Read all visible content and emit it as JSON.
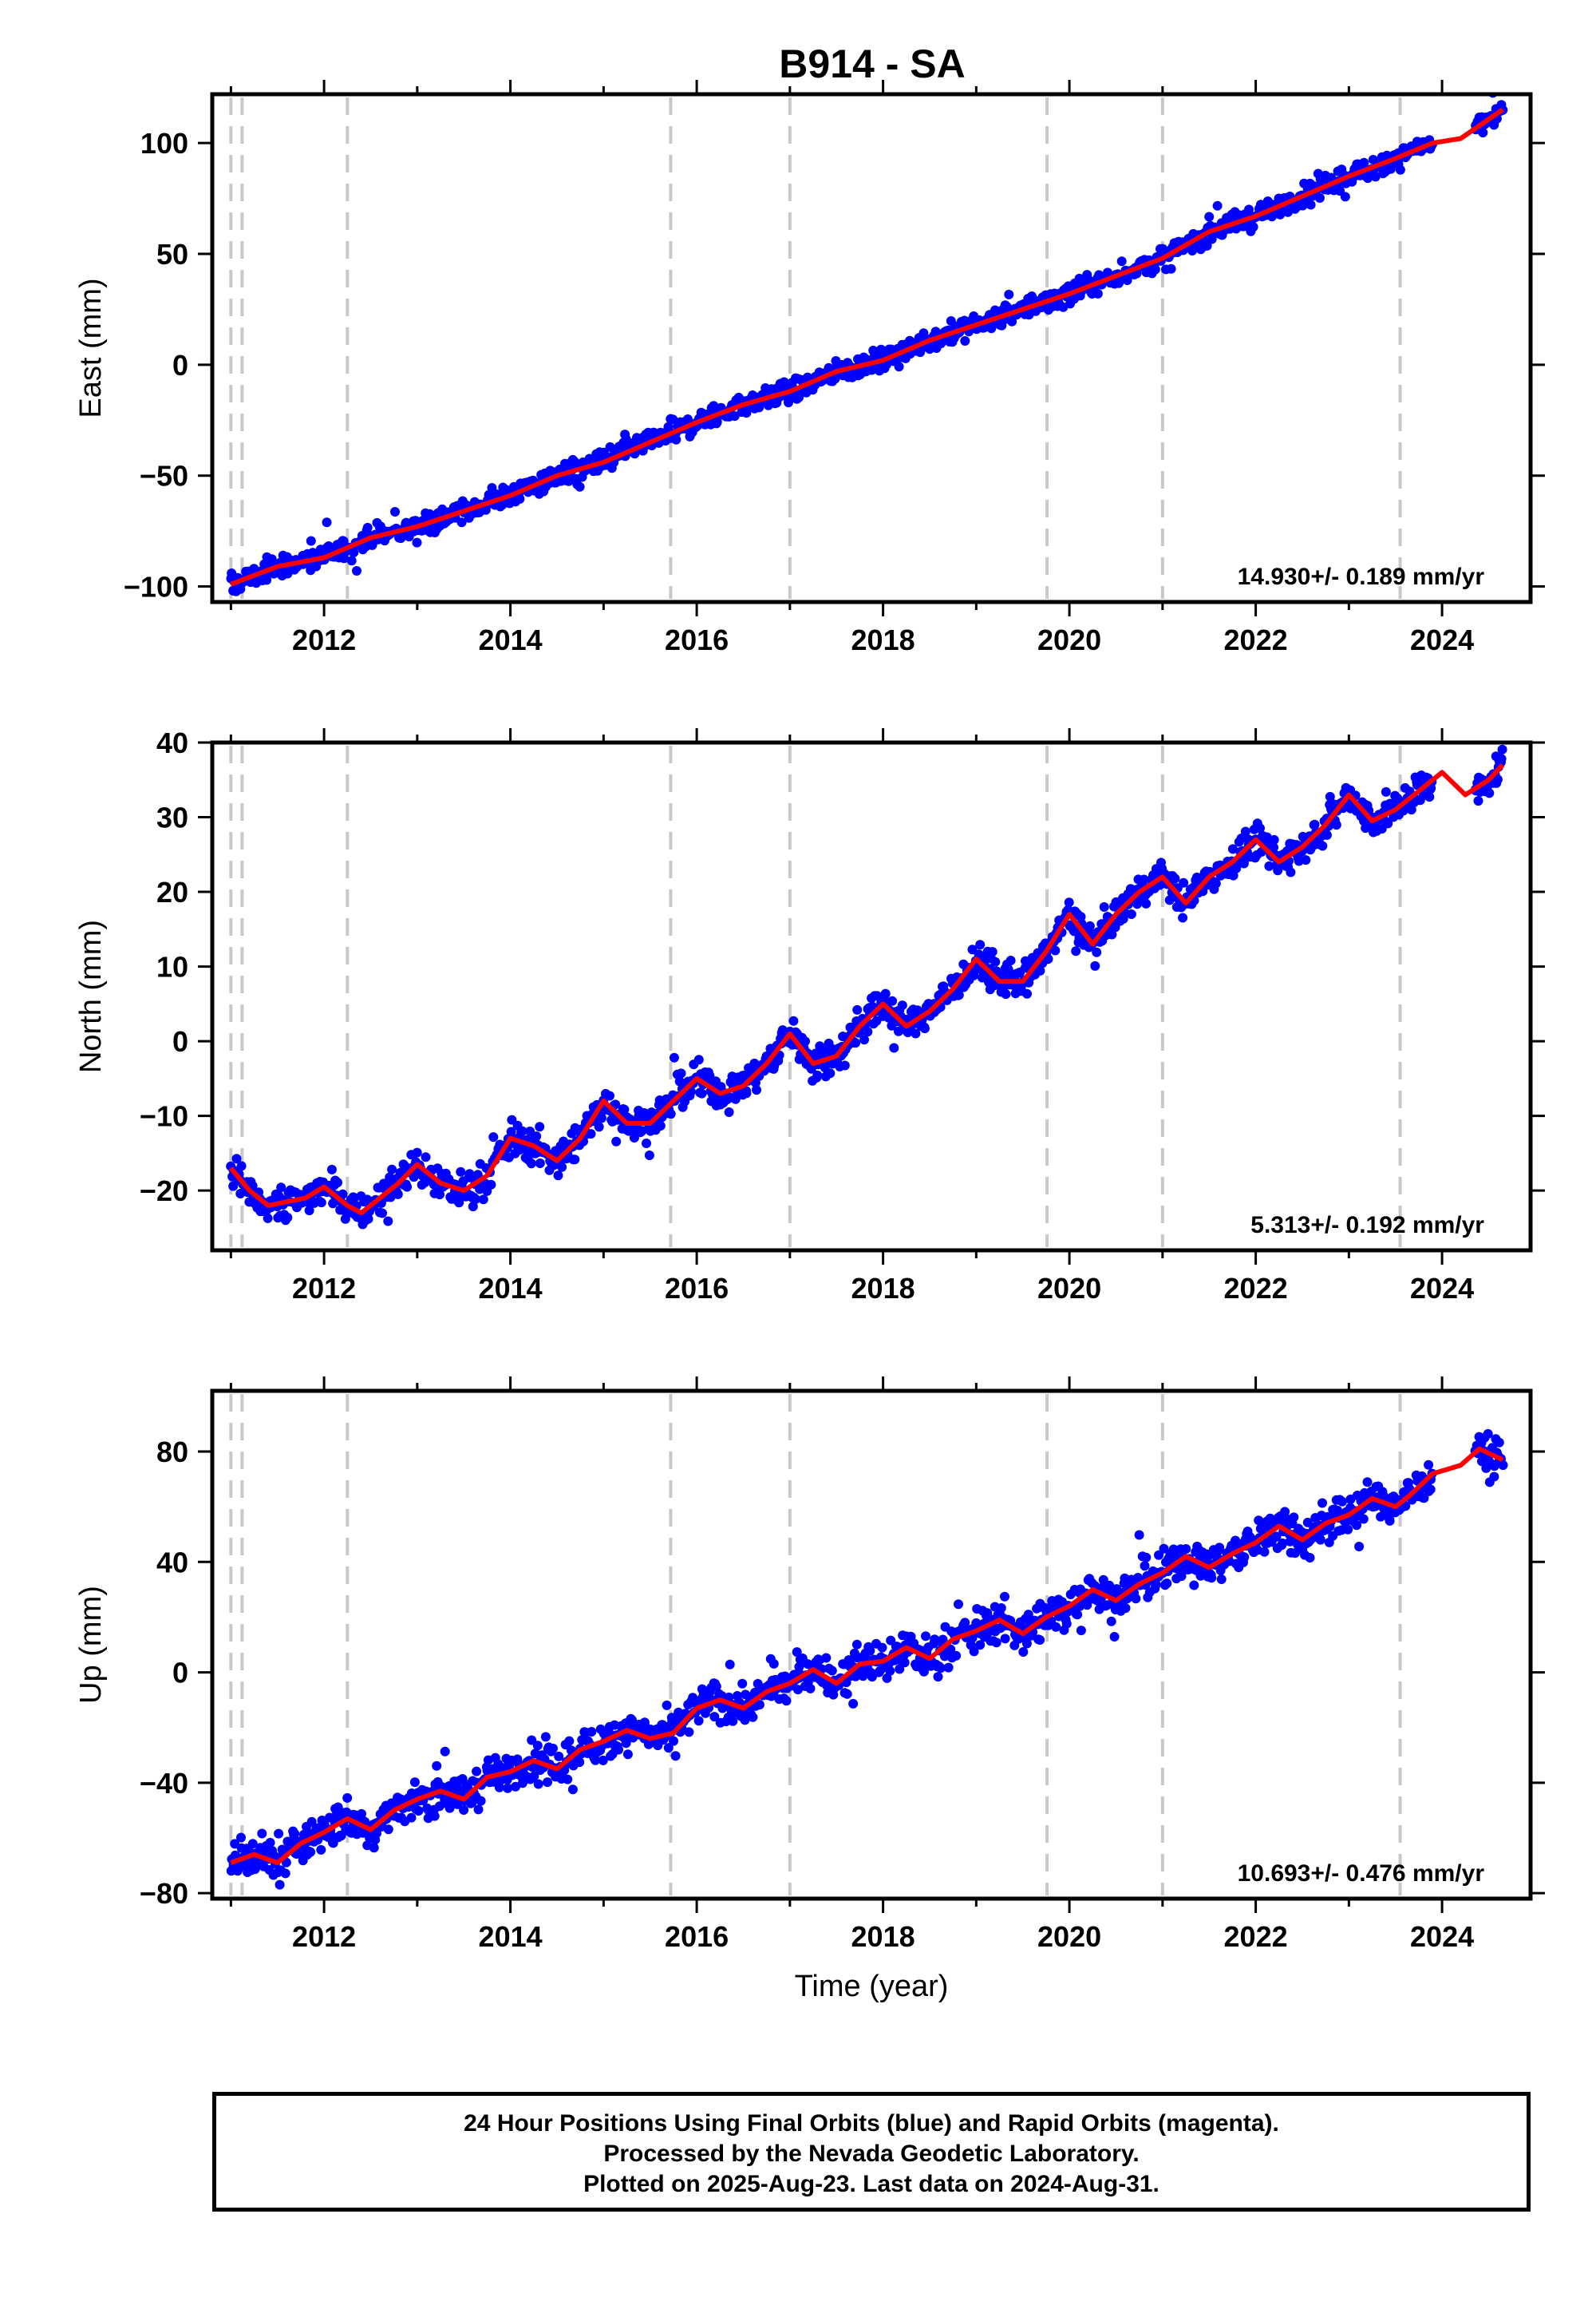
{
  "title": "B914 - SA",
  "footer": {
    "line1": "24 Hour Positions Using Final Orbits (blue) and Rapid Orbits (magenta).",
    "line2": "Processed by the Nevada Geodetic Laboratory.",
    "line3": "Plotted on 2025-Aug-23. Last data on 2024-Aug-31."
  },
  "colors": {
    "data": "#0000ff",
    "model": "#ff0000",
    "steps": "#c8c8c8",
    "axis": "#000000"
  },
  "chart_data": [
    {
      "type": "scatter",
      "component": "east",
      "ylabel": "East (mm)",
      "xlabel": "",
      "xlim": [
        2010.8,
        2024.95
      ],
      "ylim": [
        -107,
        122
      ],
      "xticks": [
        2012,
        2014,
        2016,
        2018,
        2020,
        2022,
        2024
      ],
      "yticks": [
        -100,
        -50,
        0,
        50,
        100
      ],
      "ytick_labels": [
        "−100",
        "−50",
        "0",
        "50",
        "100"
      ],
      "rate_label": "14.930+/- 0.189 mm/yr",
      "steps": [
        2011.0,
        2011.12,
        2012.25,
        2015.72,
        2017.0,
        2019.76,
        2021.0,
        2023.55
      ],
      "model": {
        "x": [
          2011.0,
          2011.5,
          2012.0,
          2012.5,
          2013.0,
          2013.5,
          2014.0,
          2014.5,
          2015.0,
          2015.5,
          2016.0,
          2016.5,
          2017.0,
          2017.5,
          2018.0,
          2018.5,
          2019.0,
          2019.5,
          2020.0,
          2020.5,
          2021.0,
          2021.5,
          2022.0,
          2022.5,
          2023.0,
          2023.5,
          2023.9,
          2024.2,
          2024.65
        ],
        "y": [
          -99,
          -91,
          -87,
          -78,
          -73,
          -66,
          -59,
          -50,
          -44,
          -35,
          -26,
          -18,
          -12,
          -3,
          2,
          11,
          18,
          25,
          32,
          40,
          48,
          60,
          67,
          76,
          85,
          93,
          100,
          102,
          115
        ]
      },
      "scatter": {
        "x_start": 2011.0,
        "x_end": 2024.65,
        "gap": [
          2023.9,
          2024.35
        ],
        "spread": 3.5,
        "count": 1300
      }
    },
    {
      "type": "scatter",
      "component": "north",
      "ylabel": "North (mm)",
      "xlabel": "",
      "xlim": [
        2010.8,
        2024.95
      ],
      "ylim": [
        -28,
        40
      ],
      "xticks": [
        2012,
        2014,
        2016,
        2018,
        2020,
        2022,
        2024
      ],
      "yticks": [
        -20,
        -10,
        0,
        10,
        20,
        30,
        40
      ],
      "ytick_labels": [
        "−20",
        "−10",
        "0",
        "10",
        "20",
        "30",
        "40"
      ],
      "rate_label": "5.313+/- 0.192 mm/yr",
      "steps": [
        2011.0,
        2011.12,
        2012.25,
        2015.72,
        2017.0,
        2019.76,
        2021.0,
        2023.55
      ],
      "model": {
        "x": [
          2011.0,
          2011.2,
          2011.4,
          2011.6,
          2011.8,
          2012.0,
          2012.25,
          2012.4,
          2012.6,
          2012.8,
          2013.0,
          2013.25,
          2013.5,
          2013.75,
          2014.0,
          2014.25,
          2014.5,
          2014.75,
          2015.0,
          2015.25,
          2015.5,
          2015.75,
          2016.0,
          2016.25,
          2016.5,
          2016.75,
          2017.0,
          2017.25,
          2017.5,
          2017.75,
          2018.0,
          2018.25,
          2018.5,
          2018.75,
          2019.0,
          2019.25,
          2019.5,
          2019.75,
          2020.0,
          2020.25,
          2020.5,
          2020.75,
          2021.0,
          2021.25,
          2021.5,
          2021.75,
          2022.0,
          2022.25,
          2022.5,
          2022.75,
          2023.0,
          2023.25,
          2023.5,
          2023.75,
          2024.0,
          2024.25,
          2024.5,
          2024.65
        ],
        "y": [
          -17,
          -20,
          -22,
          -21.5,
          -21,
          -19.5,
          -22,
          -23,
          -21,
          -19,
          -16.5,
          -19,
          -20,
          -18,
          -13,
          -14,
          -16,
          -13,
          -8,
          -11,
          -11,
          -8,
          -5,
          -7,
          -6,
          -3,
          1,
          -3,
          -2,
          2,
          5,
          2,
          4,
          7,
          11,
          8,
          8,
          12,
          17,
          13,
          17,
          20,
          22,
          18.5,
          22,
          24,
          27,
          24,
          26,
          29,
          33,
          29.5,
          31,
          33.5,
          36,
          33,
          35,
          37
        ]
      },
      "scatter": {
        "x_start": 2011.0,
        "x_end": 2024.65,
        "gap": [
          2023.9,
          2024.35
        ],
        "spread": 1.6,
        "count": 1300
      }
    },
    {
      "type": "scatter",
      "component": "up",
      "ylabel": "Up (mm)",
      "xlabel": "Time (year)",
      "xlim": [
        2010.8,
        2024.95
      ],
      "ylim": [
        -82,
        102
      ],
      "xticks": [
        2012,
        2014,
        2016,
        2018,
        2020,
        2022,
        2024
      ],
      "yticks": [
        -80,
        -40,
        0,
        40,
        80
      ],
      "ytick_labels": [
        "−80",
        "−40",
        "0",
        "40",
        "80"
      ],
      "rate_label": "10.693+/- 0.476 mm/yr",
      "steps": [
        2011.0,
        2011.12,
        2012.25,
        2015.72,
        2017.0,
        2019.76,
        2021.0,
        2023.55
      ],
      "model": {
        "x": [
          2011.0,
          2011.25,
          2011.5,
          2011.75,
          2012.0,
          2012.25,
          2012.5,
          2012.75,
          2013.0,
          2013.25,
          2013.5,
          2013.75,
          2014.0,
          2014.25,
          2014.5,
          2014.75,
          2015.0,
          2015.25,
          2015.5,
          2015.75,
          2016.0,
          2016.25,
          2016.5,
          2016.75,
          2017.0,
          2017.25,
          2017.5,
          2017.75,
          2018.0,
          2018.25,
          2018.5,
          2018.75,
          2019.0,
          2019.25,
          2019.5,
          2019.75,
          2020.0,
          2020.25,
          2020.5,
          2020.75,
          2021.0,
          2021.25,
          2021.5,
          2021.75,
          2022.0,
          2022.25,
          2022.5,
          2022.75,
          2023.0,
          2023.25,
          2023.5,
          2023.65,
          2023.9,
          2024.2,
          2024.4,
          2024.65
        ],
        "y": [
          -69,
          -66,
          -69,
          -62,
          -58,
          -53,
          -57,
          -50,
          -46,
          -43,
          -46,
          -38,
          -36,
          -32,
          -35,
          -28,
          -25,
          -21,
          -24,
          -22,
          -13,
          -10,
          -13,
          -7,
          -4,
          1,
          -4,
          3,
          4,
          9,
          5,
          12,
          15,
          19,
          14,
          20,
          24,
          30,
          26,
          32,
          36,
          42,
          38,
          43,
          47,
          53,
          48,
          54,
          57,
          63,
          60,
          64,
          72,
          75,
          81,
          77
        ]
      },
      "scatter": {
        "x_start": 2011.0,
        "x_end": 2024.65,
        "gap": [
          2023.9,
          2024.35
        ],
        "spread": 5.0,
        "count": 1300
      }
    }
  ]
}
